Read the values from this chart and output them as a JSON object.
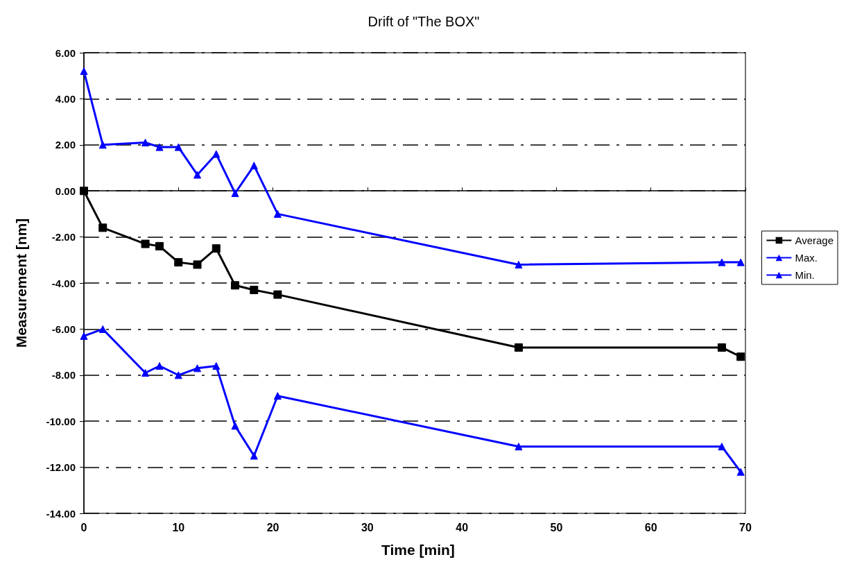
{
  "chart_data": {
    "type": "line",
    "title": "Drift of \"The BOX\"",
    "xlabel": "Time [min]",
    "ylabel": "Measurement [nm]",
    "x": [
      0,
      2,
      6.5,
      8,
      10,
      12,
      14,
      16,
      18,
      20.5,
      46,
      67.5,
      69.5
    ],
    "series": [
      {
        "name": "Average",
        "color": "#000000",
        "marker": "square",
        "values": [
          0,
          -1.6,
          -2.3,
          -2.4,
          -3.1,
          -3.2,
          -2.5,
          -4.1,
          -4.3,
          -4.5,
          -6.8,
          -6.8,
          -7.2
        ]
      },
      {
        "name": "Max.",
        "color": "#0000ff",
        "marker": "triangle",
        "values": [
          5.2,
          2.0,
          2.1,
          1.9,
          1.9,
          0.7,
          1.6,
          -0.1,
          1.1,
          -1.0,
          -3.2,
          -3.1,
          -3.1
        ]
      },
      {
        "name": "Min.",
        "color": "#0000ff",
        "marker": "triangle",
        "values": [
          -6.3,
          -6.0,
          -7.9,
          -7.6,
          -8.0,
          -7.7,
          -7.6,
          -10.2,
          -11.5,
          -8.9,
          -11.1,
          -11.1,
          -12.2
        ]
      }
    ],
    "xlim": [
      0,
      70
    ],
    "xticks": [
      0,
      10,
      20,
      30,
      40,
      50,
      60,
      70
    ],
    "ylim": [
      -14,
      6
    ],
    "yticks": [
      {
        "value": -14,
        "label": "-14.00"
      },
      {
        "value": -12,
        "label": "-12.00"
      },
      {
        "value": -10,
        "label": "-10.00"
      },
      {
        "value": -8,
        "label": "-8.00"
      },
      {
        "value": -6,
        "label": "-6.00"
      },
      {
        "value": -4,
        "label": "-4.00"
      },
      {
        "value": -2,
        "label": "-2.00"
      },
      {
        "value": 0,
        "label": "0.00"
      },
      {
        "value": 2,
        "label": "2.00"
      },
      {
        "value": 4,
        "label": "4.00"
      },
      {
        "value": 6,
        "label": "6.00"
      }
    ],
    "grid": "y",
    "legend": "right",
    "line_style": "solid"
  }
}
